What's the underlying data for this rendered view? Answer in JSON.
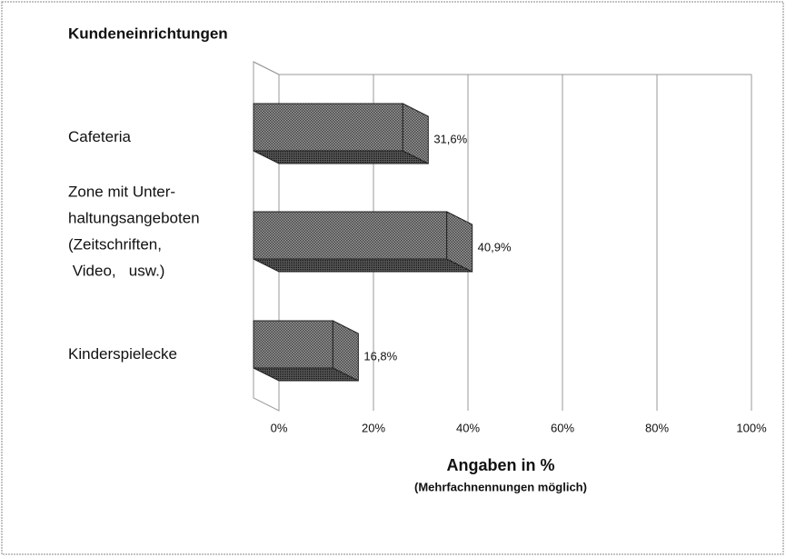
{
  "chart_data": {
    "type": "bar3d_horizontal",
    "title": "Kundeneinrichtungen",
    "categories": [
      "Cafeteria",
      "Zone mit Unter-\nhaltungsangeboten\n(Zeitschriften,\n Video,   usw.)",
      "Kinderspielecke"
    ],
    "values": [
      31.6,
      40.9,
      16.8
    ],
    "value_labels": [
      "31,6%",
      "40,9%",
      "16,8%"
    ],
    "color": "#8a8a8a",
    "xlim": [
      0,
      100
    ],
    "xticks": [
      {
        "value": 0,
        "label": "0%"
      },
      {
        "value": 20,
        "label": "20%"
      },
      {
        "value": 40,
        "label": "40%"
      },
      {
        "value": 60,
        "label": "60%"
      },
      {
        "value": 80,
        "label": "80%"
      },
      {
        "value": 100,
        "label": "100%"
      }
    ],
    "xlabel": "Angaben in %",
    "note": "(Mehrfachnennungen möglich)",
    "grid": true
  }
}
